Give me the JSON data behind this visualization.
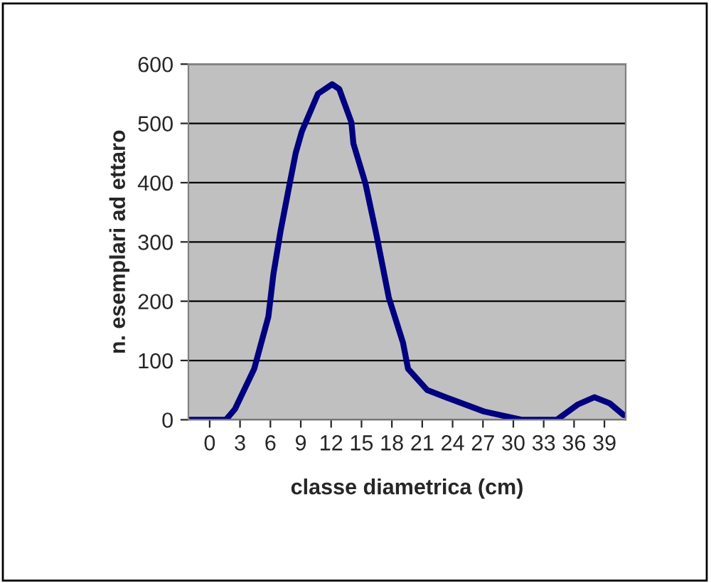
{
  "chart_data": {
    "type": "line",
    "xlabel": "classe diametrica (cm)",
    "ylabel": "n. esemplari ad ettaro",
    "x": [
      -2.0,
      1.6,
      2.5,
      4.4,
      5.8,
      6.3,
      7.0,
      7.9,
      8.5,
      9.1,
      10.7,
      12.1,
      12.8,
      14.0,
      14.2,
      15.4,
      16.5,
      17.7,
      19.1,
      19.6,
      21.5,
      23.3,
      27.1,
      30.8,
      34.3,
      36.4,
      38.0,
      39.5,
      40.9
    ],
    "series": [
      {
        "color": "#000080",
        "values": [
          0,
          0,
          18,
          86,
          174,
          246,
          318,
          398,
          450,
          486,
          550,
          566,
          558,
          502,
          466,
          398,
          310,
          206,
          130,
          86,
          50,
          38,
          14,
          0,
          0,
          26,
          38,
          28,
          8
        ]
      }
    ],
    "xlim": [
      -2.1,
      41.1
    ],
    "xticks": [
      0,
      3,
      6,
      9,
      12,
      15,
      18,
      21,
      24,
      27,
      30,
      33,
      36,
      39
    ],
    "ylim": [
      0,
      600
    ],
    "yticks": [
      0,
      100,
      200,
      300,
      400,
      500,
      600
    ],
    "grid": "y",
    "legend": false,
    "marker": "none",
    "line_style": "solid"
  }
}
